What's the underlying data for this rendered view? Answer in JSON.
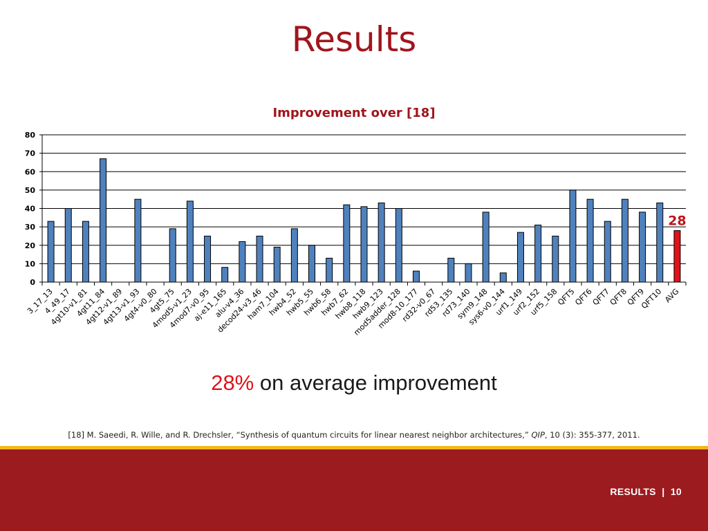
{
  "slide": {
    "title": "Results",
    "summary_pct": "28%",
    "summary_text": " on average improvement",
    "citation": {
      "before": "[18] M. Saeedi, R. Wille, and R. Drechsler, “Synthesis of quantum circuits for linear nearest neighbor architectures,” ",
      "journal": "QIP",
      "after": ", 10 (3): 355-377, 2011."
    },
    "footer_label": "RESULTS",
    "footer_sep": "|",
    "page_number": "10"
  },
  "colors": {
    "title": "#a0151c",
    "bar": "#4f81bd",
    "highlight_bar": "#e0121a",
    "highlight_label": "#c0141b",
    "footer_bg": "#9b1b1f",
    "footer_line": "#f2b818"
  },
  "chart_data": {
    "type": "bar",
    "title": "Improvement over [18]",
    "xlabel": "",
    "ylabel": "",
    "ylim": [
      0,
      80
    ],
    "yticks": [
      0,
      10,
      20,
      30,
      40,
      50,
      60,
      70,
      80
    ],
    "grid": true,
    "categories": [
      "3_17_13",
      "4_49_17",
      "4gt10-v1_81",
      "4gt11_84",
      "4gt12-v1_89",
      "4gt13-v1_93",
      "4gt4-v0_80",
      "4gt5_75",
      "4mod5-v1_23",
      "4mod7-v0_95",
      "aj-e11_165",
      "alu-v4_36",
      "decod24-v3_46",
      "ham7_104",
      "hwb4_52",
      "hwb5_55",
      "hwb6_58",
      "hwb7_62",
      "hwb8_118",
      "hwb9_123",
      "mod5adder_128",
      "mod8-10_177",
      "rd32-v0_67",
      "rd53_135",
      "rd73_140",
      "sym9_148",
      "sys6-v0_144",
      "urf1_149",
      "urf2_152",
      "urf5_158",
      "QFT5",
      "QFT6",
      "QFT7",
      "QFT8",
      "QFT9",
      "QFT10",
      "AVG"
    ],
    "values": [
      33,
      40,
      33,
      67,
      0,
      45,
      0,
      29,
      44,
      25,
      8,
      22,
      25,
      19,
      29,
      20,
      13,
      42,
      41,
      43,
      40,
      6,
      0,
      13,
      10,
      38,
      5,
      27,
      31,
      25,
      50,
      45,
      33,
      45,
      38,
      43,
      28
    ],
    "highlight": {
      "category": "AVG",
      "label": "28"
    }
  }
}
